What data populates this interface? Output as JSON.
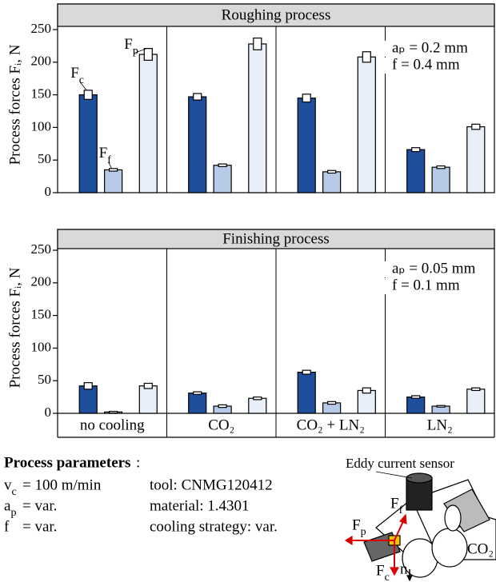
{
  "chart_data": [
    {
      "type": "bar",
      "title": "Roughing process",
      "y_label": "Process forces Fᵢ, N",
      "annotations": [
        "aₚ = 0.2 mm",
        "f = 0.4 mm"
      ],
      "ylim": [
        0,
        250
      ],
      "yticks": [
        0,
        50,
        100,
        150,
        200,
        250
      ],
      "series": [
        {
          "name": "Fc",
          "color": "#1f4e9c",
          "values": [
            150,
            147,
            145,
            66
          ],
          "errors": [
            7,
            5,
            6,
            3
          ]
        },
        {
          "name": "Ff",
          "color": "#b7cbe8",
          "values": [
            35,
            42,
            32,
            39
          ],
          "errors": [
            2,
            2,
            2,
            2
          ]
        },
        {
          "name": "Fp",
          "color": "#e9eff9",
          "values": [
            212,
            228,
            208,
            101
          ],
          "errors": [
            9,
            9,
            8,
            4
          ]
        }
      ]
    },
    {
      "type": "bar",
      "title": "Finishing process",
      "y_label": "Process forces Fᵢ, N",
      "annotations": [
        "aₚ = 0.05 mm",
        "f = 0.1 mm"
      ],
      "categories": [
        "no cooling",
        "CO₂",
        "CO₂ + LN₂",
        "LN₂"
      ],
      "ylim": [
        0,
        250
      ],
      "yticks": [
        0,
        50,
        100,
        150,
        200,
        250
      ],
      "series": [
        {
          "color": "#1f4e9c",
          "values": [
            42,
            31,
            63,
            25
          ],
          "errors": [
            5,
            2,
            3,
            2
          ]
        },
        {
          "color": "#b7cbe8",
          "values": [
            2,
            11,
            16,
            11
          ],
          "errors": [
            1,
            2,
            2,
            1
          ]
        },
        {
          "color": "#e9eff9",
          "values": [
            42,
            23,
            35,
            37
          ],
          "errors": [
            4,
            2,
            4,
            2
          ]
        }
      ]
    }
  ],
  "parameters": {
    "title": "Process parameters",
    "colon": ":",
    "rows": [
      {
        "symbol": "vc",
        "value": "= 100 m/min",
        "detail": "tool: CNMG120412"
      },
      {
        "symbol": "ap",
        "value": "= var.",
        "detail": "material: 1.4301"
      },
      {
        "symbol": "f",
        "value": "= var.",
        "detail": "cooling strategy: var."
      }
    ]
  },
  "diagram": {
    "sensor": "Eddy current sensor",
    "fp": "Fp",
    "ff": "Ff",
    "fc": "Fc",
    "n": "n",
    "gas": "CO₂"
  }
}
